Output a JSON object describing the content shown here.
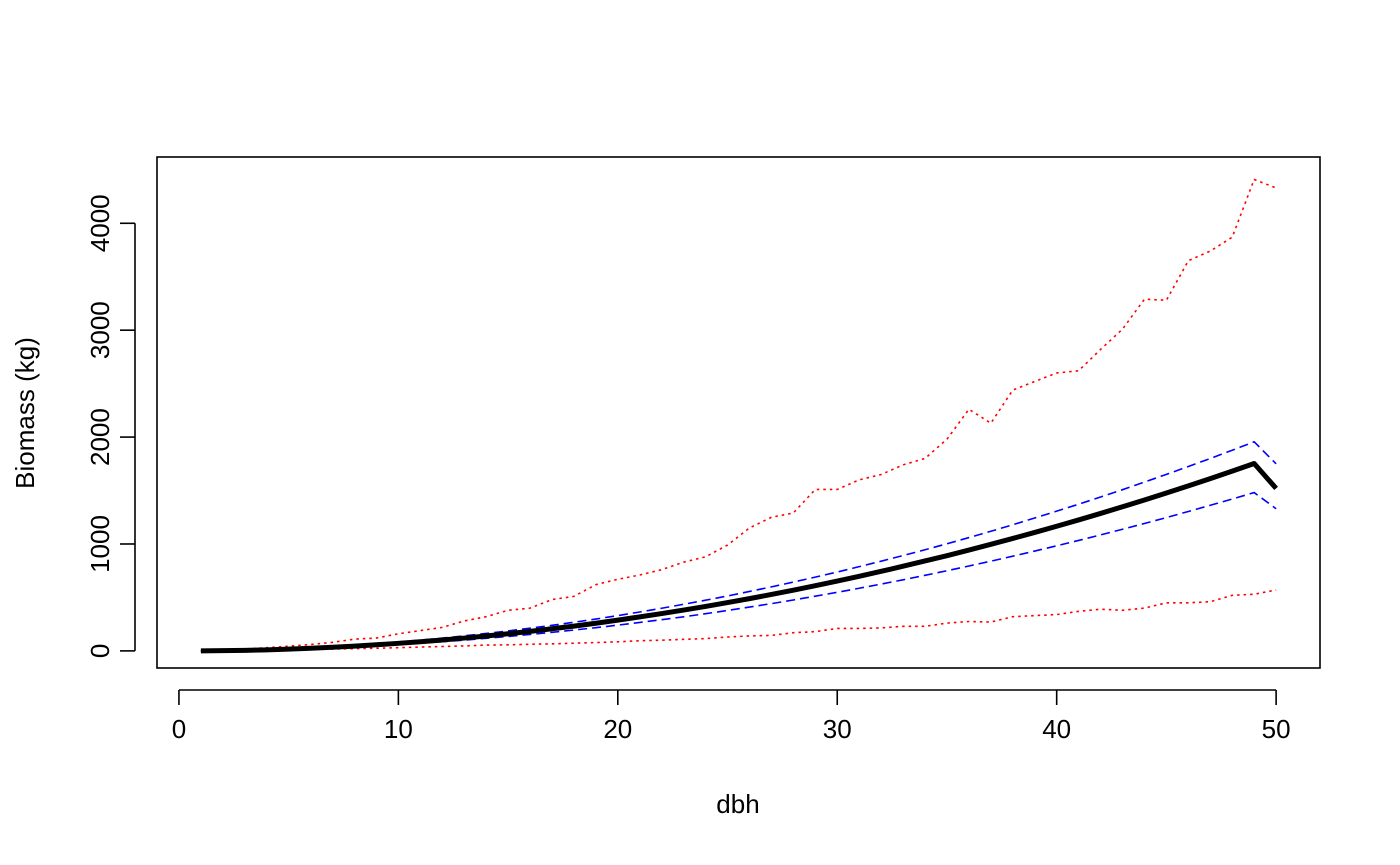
{
  "chart_data": {
    "type": "line",
    "title": "",
    "xlabel": "dbh",
    "ylabel": "Biomass (kg)",
    "xlim": [
      -1,
      52
    ],
    "ylim": [
      -160,
      4620
    ],
    "xticks": [
      0,
      10,
      20,
      30,
      40,
      50
    ],
    "yticks": [
      0,
      1000,
      2000,
      3000,
      4000
    ],
    "grid": false,
    "legend": "none",
    "x": [
      1,
      2,
      3,
      4,
      5,
      6,
      7,
      8,
      9,
      10,
      11,
      12,
      13,
      14,
      15,
      16,
      17,
      18,
      19,
      20,
      21,
      22,
      23,
      24,
      25,
      26,
      27,
      28,
      29,
      30,
      31,
      32,
      33,
      34,
      35,
      36,
      37,
      38,
      39,
      40,
      41,
      42,
      43,
      44,
      45,
      46,
      47,
      48,
      49,
      50
    ],
    "series": [
      {
        "color": "#000000",
        "style": "solid",
        "width": 5,
        "values": [
          0,
          2,
          5,
          10,
          17,
          25,
          34,
          45,
          57,
          71,
          86,
          102,
          120,
          139,
          160,
          183,
          207,
          232,
          259,
          288,
          318,
          349,
          382,
          416,
          452,
          489,
          528,
          568,
          610,
          653,
          698,
          744,
          792,
          841,
          891,
          943,
          997,
          1052,
          1108,
          1166,
          1225,
          1286,
          1348,
          1412,
          1477,
          1544,
          1612,
          1682,
          1753,
          1520
        ]
      },
      {
        "color": "#0000ff",
        "style": "dashed",
        "width": 1.6,
        "values": [
          0,
          2,
          6,
          12,
          20,
          29,
          40,
          53,
          68,
          84,
          101,
          120,
          141,
          163,
          187,
          212,
          239,
          268,
          298,
          330,
          364,
          399,
          436,
          474,
          514,
          556,
          599,
          644,
          690,
          738,
          788,
          839,
          892,
          946,
          1002,
          1060,
          1119,
          1180,
          1243,
          1307,
          1372,
          1440,
          1508,
          1579,
          1651,
          1725,
          1800,
          1877,
          1956,
          1750
        ]
      },
      {
        "color": "#0000ff",
        "style": "dashed",
        "width": 1.6,
        "values": [
          0,
          2,
          5,
          9,
          14,
          21,
          29,
          38,
          48,
          60,
          73,
          86,
          101,
          118,
          135,
          154,
          174,
          195,
          217,
          241,
          266,
          292,
          319,
          348,
          378,
          410,
          442,
          476,
          512,
          548,
          586,
          625,
          665,
          707,
          750,
          794,
          839,
          886,
          934,
          983,
          1033,
          1085,
          1138,
          1192,
          1247,
          1304,
          1362,
          1421,
          1481,
          1330
        ]
      },
      {
        "color": "#ff0000",
        "style": "dotted",
        "width": 1.6,
        "values": [
          0,
          8,
          18,
          30,
          44,
          60,
          80,
          110,
          120,
          160,
          190,
          220,
          280,
          320,
          380,
          400,
          480,
          510,
          620,
          670,
          710,
          760,
          830,
          880,
          990,
          1150,
          1250,
          1290,
          1510,
          1510,
          1600,
          1650,
          1740,
          1800,
          1980,
          2260,
          2130,
          2440,
          2520,
          2600,
          2620,
          2820,
          3010,
          3290,
          3280,
          3650,
          3740,
          3870,
          4410,
          4330
        ]
      },
      {
        "color": "#ff0000",
        "style": "dotted",
        "width": 1.6,
        "values": [
          0,
          2,
          4,
          7,
          10,
          14,
          17,
          21,
          25,
          30,
          36,
          41,
          47,
          54,
          57,
          62,
          66,
          72,
          78,
          85,
          95,
          100,
          108,
          115,
          130,
          140,
          145,
          170,
          180,
          210,
          210,
          215,
          230,
          230,
          260,
          275,
          270,
          320,
          330,
          340,
          370,
          390,
          380,
          400,
          450,
          450,
          460,
          520,
          530,
          570
        ]
      }
    ]
  }
}
